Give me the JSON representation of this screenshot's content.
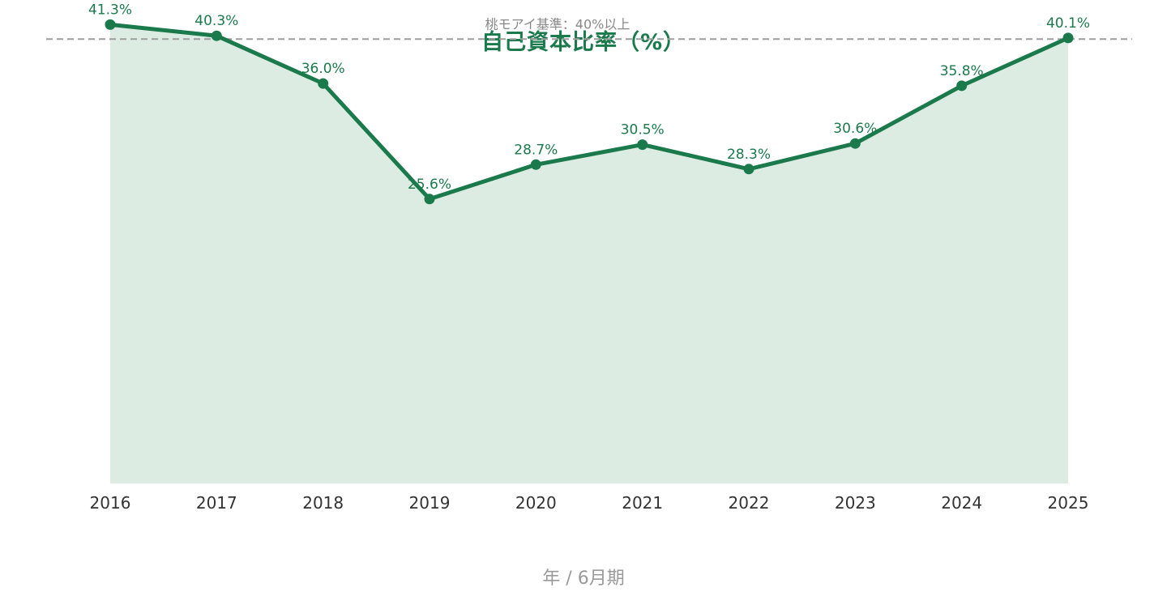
{
  "chart_data": {
    "type": "area",
    "title": "自己資本比率（%）",
    "xlabel": "年 / 6月期",
    "ylabel": "",
    "categories": [
      "2016",
      "2017",
      "2018",
      "2019",
      "2020",
      "2021",
      "2022",
      "2023",
      "2024",
      "2025"
    ],
    "values": [
      41.3,
      40.3,
      36.0,
      25.6,
      28.7,
      30.5,
      28.3,
      30.6,
      35.8,
      40.1
    ],
    "data_labels": [
      "41.3%",
      "40.3%",
      "36.0%",
      "25.6%",
      "28.7%",
      "30.5%",
      "28.3%",
      "30.6%",
      "35.8%",
      "40.1%"
    ],
    "ylim": [
      0,
      43.3
    ],
    "grid": false,
    "legend": "none",
    "reference_line": {
      "value": 40,
      "label": "桃モアイ基準：40%以上",
      "style": "dashed",
      "color": "#9e9e9e"
    },
    "colors": {
      "line": "#1b7a4c",
      "area": "#dcece3",
      "label": "#1b7a4c"
    }
  }
}
